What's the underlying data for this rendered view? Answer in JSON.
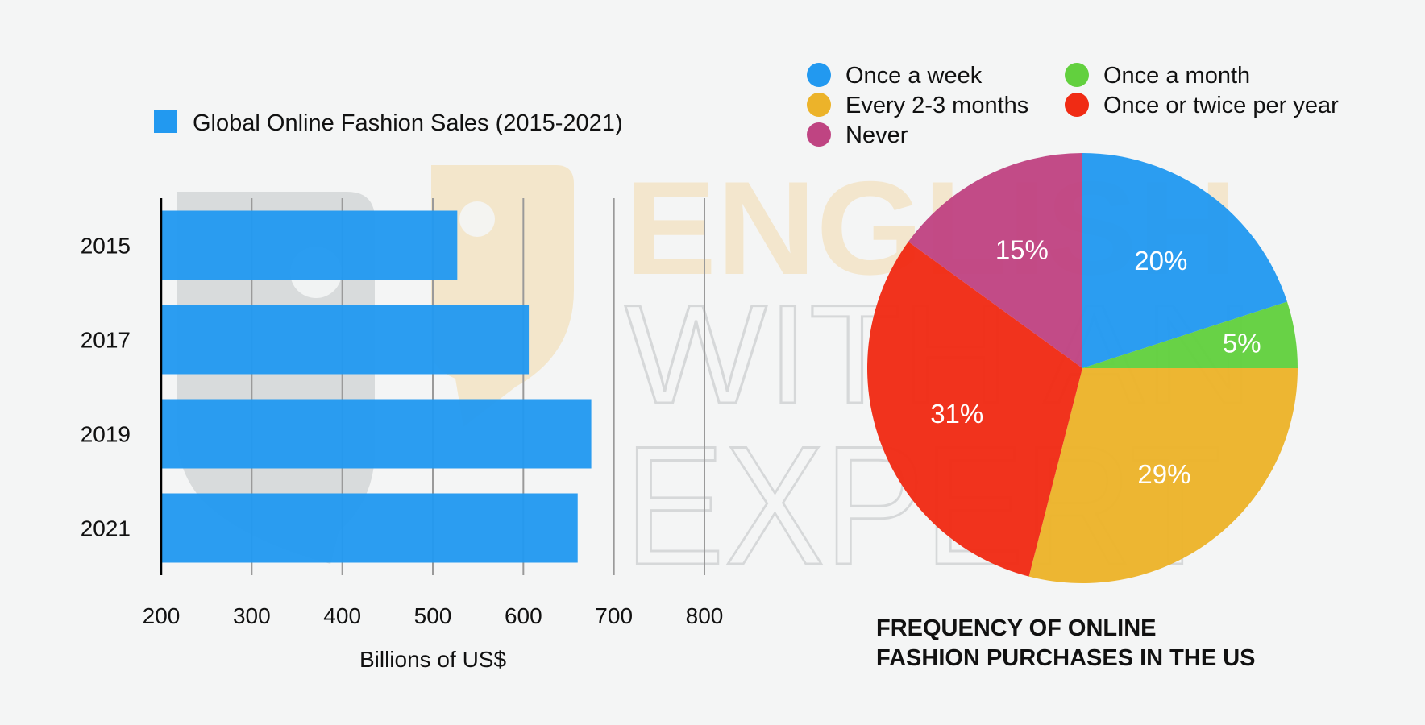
{
  "chart_data": [
    {
      "type": "bar",
      "orientation": "horizontal",
      "categories": [
        "2015",
        "2017",
        "2019",
        "2021"
      ],
      "series": [
        {
          "name": "Global Online Fashion Sales (2015-2021)",
          "values": [
            527,
            606,
            675,
            660
          ]
        }
      ],
      "xlabel": "Billions of US$",
      "xlim": [
        200,
        800
      ],
      "xticks": [
        200,
        300,
        400,
        500,
        600,
        700,
        800
      ],
      "grid": "vertical",
      "legend": "top-left",
      "colors": {
        "bar": "#2299f0"
      }
    },
    {
      "type": "pie",
      "title_lines": [
        "FREQUENCY OF ONLINE",
        "FASHION PURCHASES IN THE US"
      ],
      "slices": [
        {
          "label": "Once a week",
          "value": 20,
          "display": "20%",
          "color": "#2299f0"
        },
        {
          "label": "Once a month",
          "value": 5,
          "display": "5%",
          "color": "#62d03e"
        },
        {
          "label": "Every 2-3 months",
          "value": 29,
          "display": "29%",
          "color": "#ecb32a"
        },
        {
          "label": "Once or twice per year",
          "value": 31,
          "display": "31%",
          "color": "#f02b14"
        },
        {
          "label": "Never",
          "value": 15,
          "display": "15%",
          "color": "#bf4482"
        }
      ],
      "legend_order": [
        0,
        1,
        2,
        3,
        4
      ],
      "legend": "top"
    }
  ],
  "watermark": {
    "lines": [
      "ENGLISH",
      "WITH AN",
      "EXPERT"
    ],
    "colors": {
      "shape": "#cfd1d3",
      "accent": "#f3e2c0",
      "text_light": "#f3e2c0",
      "text_dark": "#cfd1d3"
    }
  }
}
